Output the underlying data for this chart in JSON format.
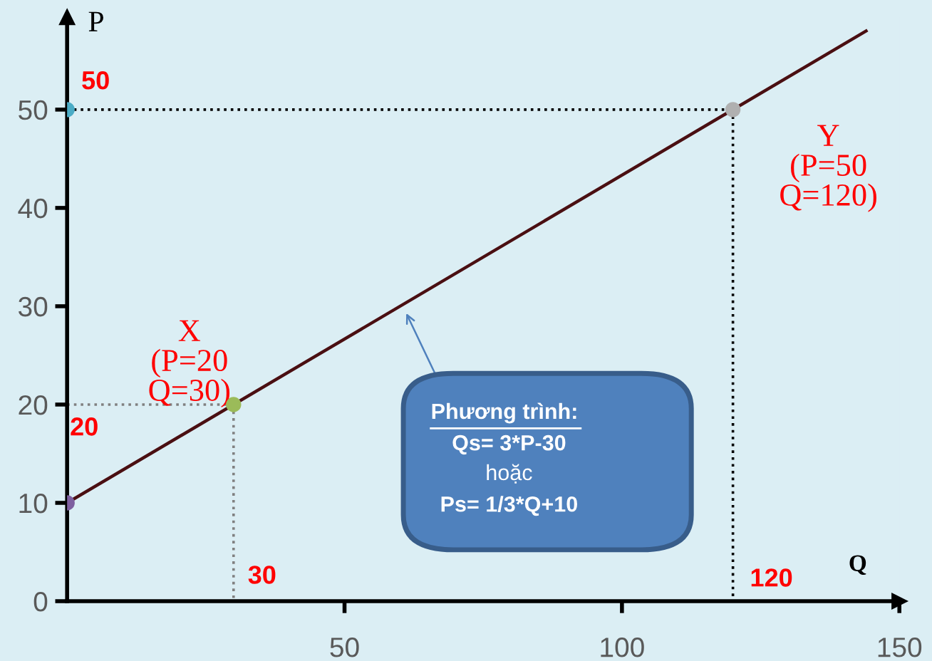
{
  "chart_data": {
    "type": "line",
    "xlabel": "Q",
    "ylabel": "P",
    "xlim": [
      0,
      150
    ],
    "ylim": [
      0,
      59.4
    ],
    "xticks": [
      50,
      100,
      150
    ],
    "yticks": [
      0,
      10,
      20,
      30,
      40,
      50
    ],
    "grid": false,
    "series": [
      {
        "x": [
          0,
          144
        ],
        "values": [
          10,
          58
        ],
        "color": "#4a0f12",
        "line_style": "solid",
        "marker": "none"
      },
      {
        "x": [
          0,
          120
        ],
        "values": [
          50,
          50
        ],
        "color": "#000000",
        "line_style": "dotted",
        "marker": "none"
      },
      {
        "x": [
          120,
          120
        ],
        "values": [
          50,
          0
        ],
        "color": "#000000",
        "line_style": "dotted",
        "marker": "none"
      },
      {
        "x": [
          0,
          30
        ],
        "values": [
          20,
          20
        ],
        "color": "#808080",
        "line_style": "dotted",
        "marker": "none"
      },
      {
        "x": [
          30,
          30
        ],
        "values": [
          20,
          0
        ],
        "color": "#808080",
        "line_style": "dotted",
        "marker": "none"
      },
      {
        "type": "scatter",
        "x": [
          0,
          30,
          120,
          0
        ],
        "values": [
          10,
          20,
          50,
          50
        ],
        "colors": [
          "#7e5fa0",
          "#9bbb59",
          "#b0b0b0",
          "#4bacc6"
        ],
        "marker": "circle"
      }
    ],
    "annotations": [
      {
        "text": "50",
        "x": 0,
        "y": 50
      },
      {
        "text": "20",
        "x": 0,
        "y": 20
      },
      {
        "text": "30",
        "x": 30,
        "y": 0
      },
      {
        "text": "120",
        "x": 120,
        "y": 0
      },
      {
        "text": "X\n(P=20\nQ=30)",
        "x": 30,
        "y": 20
      },
      {
        "text": "Y\n(P=50\nQ=120)",
        "x": 120,
        "y": 50
      },
      "Phương trình:",
      "Qs= 3*P-30",
      "hoặc",
      "Ps= 1/3*Q+10"
    ]
  }
}
